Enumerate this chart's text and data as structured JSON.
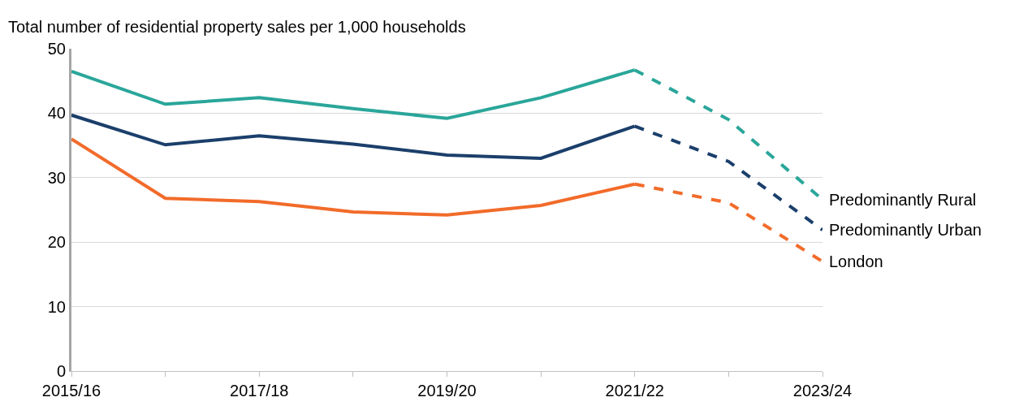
{
  "chart_data": {
    "type": "line",
    "ylabel": "Total number of residential property sales per 1,000 households",
    "categories": [
      "2015/16",
      null,
      "2017/18",
      null,
      "2019/20",
      null,
      "2021/22",
      null,
      "2023/24"
    ],
    "series": [
      {
        "color": "#2aa69a",
        "line_style": "solid",
        "values": [
          46.5,
          41.4,
          42.4,
          40.7,
          39.2,
          42.4,
          46.7,
          null,
          null
        ]
      },
      {
        "color": "#1b3f6b",
        "line_style": "solid",
        "values": [
          39.7,
          35.1,
          36.5,
          35.2,
          33.5,
          33.0,
          38.0,
          null,
          null
        ]
      },
      {
        "color": "#f26b2a",
        "line_style": "solid",
        "values": [
          36.0,
          26.8,
          26.3,
          24.7,
          24.2,
          25.7,
          29.0,
          null,
          null
        ]
      },
      {
        "name": "Predominantly Rural",
        "color": "#2aa69a",
        "line_style": "dashed",
        "values": [
          null,
          null,
          null,
          null,
          null,
          null,
          46.7,
          39.0,
          26.6
        ]
      },
      {
        "name": "Predominantly Urban",
        "color": "#1b3f6b",
        "line_style": "dashed",
        "values": [
          null,
          null,
          null,
          null,
          null,
          null,
          38.0,
          32.5,
          21.9
        ]
      },
      {
        "name": "London",
        "color": "#f26b2a",
        "line_style": "dashed",
        "values": [
          null,
          null,
          null,
          null,
          null,
          null,
          29.0,
          26.1,
          17.0
        ]
      }
    ],
    "ylim": [
      0,
      50
    ],
    "yticks": [
      0,
      10,
      20,
      30,
      40,
      50
    ],
    "grid": "y",
    "legend": false,
    "marker": "none"
  }
}
